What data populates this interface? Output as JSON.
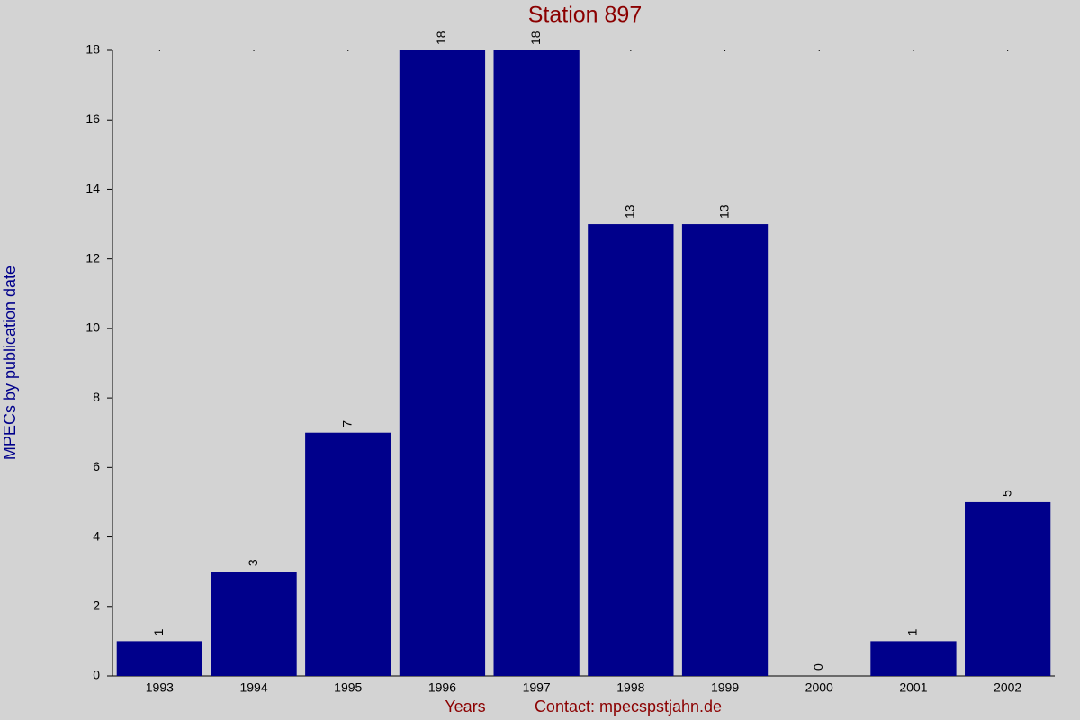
{
  "chart_data": {
    "type": "bar",
    "title": "Station 897",
    "x_label": "Years",
    "note": "Contact: mpecspstjahn.de",
    "y_label": "MPECs by publication date",
    "categories": [
      "1993",
      "1994",
      "1995",
      "1996",
      "1997",
      "1998",
      "1999",
      "2000",
      "2001",
      "2002"
    ],
    "values": [
      1,
      3,
      7,
      18,
      18,
      13,
      13,
      0,
      1,
      5
    ],
    "color": "#00008b",
    "ylim": [
      0,
      18
    ],
    "yticks": [
      0,
      2,
      4,
      6,
      8,
      10,
      12,
      14,
      16,
      18
    ],
    "data_labels": true
  }
}
